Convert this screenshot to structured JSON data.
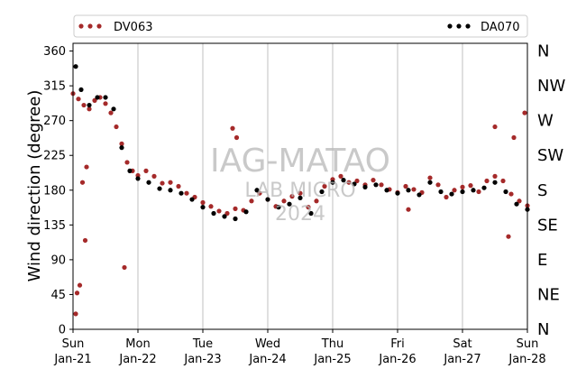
{
  "chart_data": {
    "type": "scatter",
    "ylabel": "Wind direction (degree)",
    "ylim": [
      0,
      370
    ],
    "yticks": [
      0,
      45,
      90,
      135,
      180,
      225,
      270,
      315,
      360
    ],
    "xlim": [
      "2024-01-21",
      "2024-01-28"
    ],
    "xticks": [
      {
        "date": "2024-01-21",
        "day": "Sun",
        "label": "Jan-21"
      },
      {
        "date": "2024-01-22",
        "day": "Mon",
        "label": "Jan-22"
      },
      {
        "date": "2024-01-23",
        "day": "Tue",
        "label": "Jan-23"
      },
      {
        "date": "2024-01-24",
        "day": "Wed",
        "label": "Jan-24"
      },
      {
        "date": "2024-01-25",
        "day": "Thu",
        "label": "Jan-25"
      },
      {
        "date": "2024-01-26",
        "day": "Fri",
        "label": "Jan-26"
      },
      {
        "date": "2024-01-27",
        "day": "Sat",
        "label": "Jan-27"
      },
      {
        "date": "2024-01-28",
        "day": "Sun",
        "label": "Jan-28"
      }
    ],
    "secondary_y_labels": [
      {
        "value": 0,
        "label": "N"
      },
      {
        "value": 45,
        "label": "NE"
      },
      {
        "value": 90,
        "label": "E"
      },
      {
        "value": 135,
        "label": "SE"
      },
      {
        "value": 180,
        "label": "S"
      },
      {
        "value": 225,
        "label": "SW"
      },
      {
        "value": 270,
        "label": "W"
      },
      {
        "value": 315,
        "label": "NW"
      },
      {
        "value": 360,
        "label": "N"
      }
    ],
    "grid": "vertical",
    "legend_position": "top",
    "series": [
      {
        "name": "DV063",
        "color": "#a52a2a",
        "points": [
          [
            "2024-01-21 00:00",
            305
          ],
          [
            "2024-01-21 02:00",
            298
          ],
          [
            "2024-01-21 04:00",
            290
          ],
          [
            "2024-01-21 06:00",
            285
          ],
          [
            "2024-01-21 08:00",
            296
          ],
          [
            "2024-01-21 10:00",
            300
          ],
          [
            "2024-01-21 12:00",
            292
          ],
          [
            "2024-01-21 14:00",
            280
          ],
          [
            "2024-01-21 16:00",
            262
          ],
          [
            "2024-01-21 18:00",
            240
          ],
          [
            "2024-01-21 20:00",
            216
          ],
          [
            "2024-01-21 22:00",
            205
          ],
          [
            "2024-01-22 00:00",
            199
          ],
          [
            "2024-01-22 03:00",
            205
          ],
          [
            "2024-01-22 06:00",
            198
          ],
          [
            "2024-01-22 09:00",
            189
          ],
          [
            "2024-01-22 12:00",
            190
          ],
          [
            "2024-01-22 15:00",
            185
          ],
          [
            "2024-01-22 18:00",
            176
          ],
          [
            "2024-01-22 21:00",
            171
          ],
          [
            "2024-01-23 00:00",
            164
          ],
          [
            "2024-01-23 03:00",
            159
          ],
          [
            "2024-01-23 06:00",
            153
          ],
          [
            "2024-01-23 09:00",
            150
          ],
          [
            "2024-01-23 12:00",
            156
          ],
          [
            "2024-01-23 15:00",
            154
          ],
          [
            "2024-01-23 18:00",
            166
          ],
          [
            "2024-01-23 21:00",
            176
          ],
          [
            "2024-01-24 00:00",
            168
          ],
          [
            "2024-01-24 03:00",
            159
          ],
          [
            "2024-01-24 06:00",
            166
          ],
          [
            "2024-01-24 09:00",
            172
          ],
          [
            "2024-01-24 12:00",
            176
          ],
          [
            "2024-01-24 15:00",
            158
          ],
          [
            "2024-01-24 18:00",
            166
          ],
          [
            "2024-01-24 21:00",
            185
          ],
          [
            "2024-01-25 00:00",
            194
          ],
          [
            "2024-01-25 03:00",
            198
          ],
          [
            "2024-01-25 06:00",
            190
          ],
          [
            "2024-01-25 09:00",
            192
          ],
          [
            "2024-01-25 12:00",
            187
          ],
          [
            "2024-01-25 15:00",
            193
          ],
          [
            "2024-01-25 18:00",
            187
          ],
          [
            "2024-01-25 21:00",
            181
          ],
          [
            "2024-01-26 00:00",
            177
          ],
          [
            "2024-01-26 03:00",
            185
          ],
          [
            "2024-01-26 06:00",
            181
          ],
          [
            "2024-01-26 09:00",
            177
          ],
          [
            "2024-01-26 12:00",
            196
          ],
          [
            "2024-01-26 15:00",
            187
          ],
          [
            "2024-01-26 18:00",
            171
          ],
          [
            "2024-01-26 21:00",
            180
          ],
          [
            "2024-01-27 00:00",
            184
          ],
          [
            "2024-01-27 03:00",
            186
          ],
          [
            "2024-01-27 06:00",
            178
          ],
          [
            "2024-01-27 09:00",
            192
          ],
          [
            "2024-01-27 12:00",
            198
          ],
          [
            "2024-01-27 15:00",
            192
          ],
          [
            "2024-01-27 18:00",
            175
          ],
          [
            "2024-01-27 21:00",
            166
          ],
          [
            "2024-01-28 00:00",
            160
          ],
          [
            "2024-01-21 01:00",
            20
          ],
          [
            "2024-01-21 01:30",
            47
          ],
          [
            "2024-01-21 02:30",
            57
          ],
          [
            "2024-01-21 04:30",
            115
          ],
          [
            "2024-01-21 03:30",
            190
          ],
          [
            "2024-01-21 05:00",
            210
          ],
          [
            "2024-01-21 19:00",
            80
          ],
          [
            "2024-01-23 11:00",
            260
          ],
          [
            "2024-01-23 12:30",
            248
          ],
          [
            "2024-01-26 04:00",
            155
          ],
          [
            "2024-01-27 12:00",
            262
          ],
          [
            "2024-01-27 23:00",
            280
          ],
          [
            "2024-01-27 17:00",
            120
          ],
          [
            "2024-01-27 19:00",
            248
          ]
        ]
      },
      {
        "name": "DA070",
        "color": "#000000",
        "points": [
          [
            "2024-01-21 01:00",
            340
          ],
          [
            "2024-01-21 03:00",
            310
          ],
          [
            "2024-01-21 06:00",
            290
          ],
          [
            "2024-01-21 09:00",
            300
          ],
          [
            "2024-01-21 12:00",
            300
          ],
          [
            "2024-01-21 15:00",
            285
          ],
          [
            "2024-01-21 18:00",
            235
          ],
          [
            "2024-01-21 21:00",
            205
          ],
          [
            "2024-01-22 00:00",
            195
          ],
          [
            "2024-01-22 04:00",
            190
          ],
          [
            "2024-01-22 08:00",
            182
          ],
          [
            "2024-01-22 12:00",
            180
          ],
          [
            "2024-01-22 16:00",
            176
          ],
          [
            "2024-01-22 20:00",
            168
          ],
          [
            "2024-01-23 00:00",
            158
          ],
          [
            "2024-01-23 04:00",
            150
          ],
          [
            "2024-01-23 08:00",
            146
          ],
          [
            "2024-01-23 12:00",
            143
          ],
          [
            "2024-01-23 16:00",
            152
          ],
          [
            "2024-01-23 20:00",
            180
          ],
          [
            "2024-01-24 00:00",
            168
          ],
          [
            "2024-01-24 04:00",
            158
          ],
          [
            "2024-01-24 08:00",
            162
          ],
          [
            "2024-01-24 12:00",
            170
          ],
          [
            "2024-01-24 16:00",
            150
          ],
          [
            "2024-01-24 20:00",
            178
          ],
          [
            "2024-01-25 00:00",
            190
          ],
          [
            "2024-01-25 04:00",
            193
          ],
          [
            "2024-01-25 08:00",
            188
          ],
          [
            "2024-01-25 12:00",
            184
          ],
          [
            "2024-01-25 16:00",
            187
          ],
          [
            "2024-01-25 20:00",
            180
          ],
          [
            "2024-01-26 00:00",
            176
          ],
          [
            "2024-01-26 04:00",
            180
          ],
          [
            "2024-01-26 08:00",
            174
          ],
          [
            "2024-01-26 12:00",
            190
          ],
          [
            "2024-01-26 16:00",
            178
          ],
          [
            "2024-01-26 20:00",
            175
          ],
          [
            "2024-01-27 00:00",
            178
          ],
          [
            "2024-01-27 04:00",
            180
          ],
          [
            "2024-01-27 08:00",
            183
          ],
          [
            "2024-01-27 12:00",
            190
          ],
          [
            "2024-01-27 16:00",
            178
          ],
          [
            "2024-01-27 20:00",
            162
          ],
          [
            "2024-01-28 00:00",
            155
          ]
        ]
      }
    ]
  },
  "watermark": {
    "line1": "IAG-MATAO",
    "line2": "LAB MICRO",
    "line3": "2024"
  }
}
